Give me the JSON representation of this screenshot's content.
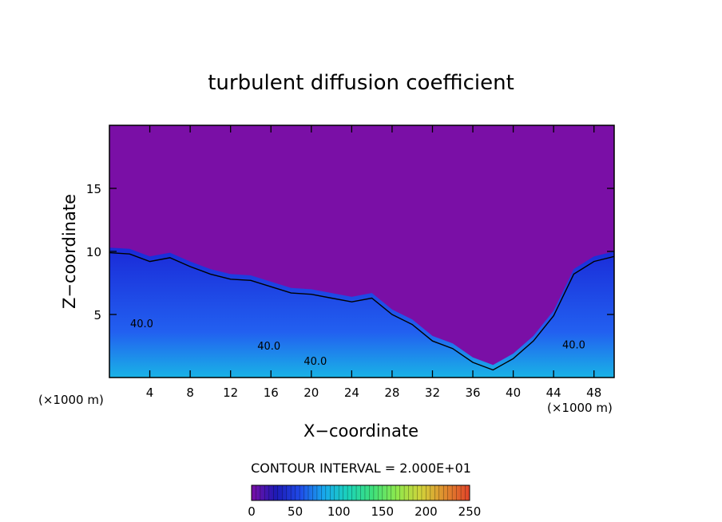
{
  "chart_data": {
    "type": "heatmap",
    "title": "turbulent diffusion coefficient",
    "xlabel": "X−coordinate",
    "ylabel": "Z−coordinate",
    "x_unit_left": "(×1000 m)",
    "x_unit_right": "(×1000 m)",
    "xlim": [
      0,
      50
    ],
    "ylim": [
      0,
      20
    ],
    "x_ticks": [
      4,
      8,
      12,
      16,
      20,
      24,
      28,
      32,
      36,
      40,
      44,
      48
    ],
    "x_tick_labels": [
      "4",
      "8",
      "12",
      "16",
      "20",
      "24",
      "28",
      "32",
      "36",
      "40",
      "44",
      "48"
    ],
    "y_ticks": [
      5,
      10,
      15
    ],
    "y_tick_labels": [
      "5",
      "10",
      "15"
    ],
    "contour_labels": [
      {
        "text": "40.0",
        "x": 3.2,
        "y": 4.0
      },
      {
        "text": "40.0",
        "x": 15.8,
        "y": 2.2
      },
      {
        "text": "40.0",
        "x": 20.4,
        "y": 1.0
      },
      {
        "text": "40.0",
        "x": 46.0,
        "y": 2.3
      }
    ],
    "contour_interval_text": "CONTOUR INTERVAL = 2.000E+01",
    "colorbar": {
      "min": 0,
      "max": 250,
      "ticks": [
        0,
        50,
        100,
        150,
        200,
        250
      ],
      "tick_labels": [
        "0",
        "50",
        "100",
        "150",
        "200",
        "250"
      ],
      "colors": [
        "#7a0fa6",
        "#1d1ab5",
        "#1f4be8",
        "#18a9ec",
        "#1bd3b8",
        "#3fe07a",
        "#8fe84c",
        "#d2d23a",
        "#e08a2e",
        "#e0432a"
      ]
    },
    "boundary_height_profile": [
      [
        0,
        10.3
      ],
      [
        2,
        10.2
      ],
      [
        4,
        9.6
      ],
      [
        6,
        9.9
      ],
      [
        8,
        9.2
      ],
      [
        10,
        8.6
      ],
      [
        12,
        8.2
      ],
      [
        14,
        8.1
      ],
      [
        16,
        7.6
      ],
      [
        18,
        7.1
      ],
      [
        20,
        7.0
      ],
      [
        22,
        6.7
      ],
      [
        24,
        6.4
      ],
      [
        26,
        6.7
      ],
      [
        28,
        5.4
      ],
      [
        30,
        4.6
      ],
      [
        32,
        3.3
      ],
      [
        34,
        2.7
      ],
      [
        36,
        1.6
      ],
      [
        38,
        1.0
      ],
      [
        40,
        1.9
      ],
      [
        42,
        3.3
      ],
      [
        44,
        5.3
      ],
      [
        46,
        8.6
      ],
      [
        48,
        9.6
      ],
      [
        50,
        10.0
      ]
    ]
  }
}
